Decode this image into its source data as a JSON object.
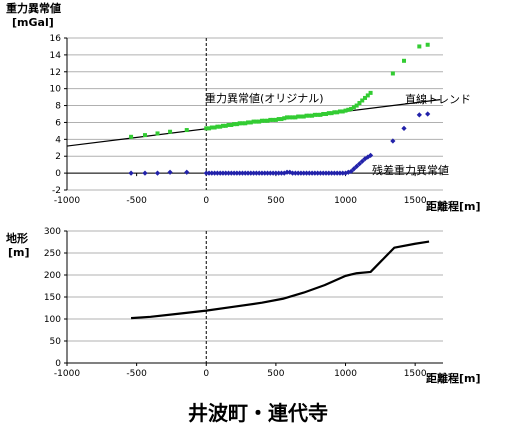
{
  "caption": "井波町・連代寺",
  "chart_data": [
    {
      "type": "scatter",
      "ylabel_line1": "重力異常値",
      "ylabel_line2": "[mGal]",
      "xlabel": "距離程[m]",
      "xlim": [
        -1000,
        1700
      ],
      "ylim": [
        -2,
        16
      ],
      "xticks": [
        -1000,
        -500,
        0,
        500,
        1000,
        1500
      ],
      "yticks": [
        -2,
        0,
        2,
        4,
        6,
        8,
        10,
        12,
        14,
        16
      ],
      "grid": "horizontal",
      "series": [
        {
          "name": "重力異常値(オリジナル)",
          "color": "#33cc33",
          "marker": "square",
          "points": [
            [
              -540,
              4.3
            ],
            [
              -440,
              4.5
            ],
            [
              -350,
              4.7
            ],
            [
              -260,
              4.9
            ],
            [
              -140,
              5.1
            ],
            [
              0,
              5.3
            ],
            [
              20,
              5.3
            ],
            [
              40,
              5.4
            ],
            [
              60,
              5.4
            ],
            [
              80,
              5.5
            ],
            [
              100,
              5.5
            ],
            [
              120,
              5.6
            ],
            [
              140,
              5.6
            ],
            [
              160,
              5.7
            ],
            [
              180,
              5.7
            ],
            [
              200,
              5.8
            ],
            [
              220,
              5.8
            ],
            [
              240,
              5.9
            ],
            [
              260,
              5.9
            ],
            [
              280,
              5.9
            ],
            [
              300,
              6.0
            ],
            [
              320,
              6.0
            ],
            [
              340,
              6.1
            ],
            [
              360,
              6.1
            ],
            [
              380,
              6.1
            ],
            [
              400,
              6.2
            ],
            [
              420,
              6.2
            ],
            [
              440,
              6.2
            ],
            [
              460,
              6.3
            ],
            [
              480,
              6.3
            ],
            [
              500,
              6.3
            ],
            [
              520,
              6.4
            ],
            [
              540,
              6.4
            ],
            [
              560,
              6.5
            ],
            [
              580,
              6.6
            ],
            [
              600,
              6.6
            ],
            [
              620,
              6.6
            ],
            [
              640,
              6.6
            ],
            [
              660,
              6.7
            ],
            [
              680,
              6.7
            ],
            [
              700,
              6.7
            ],
            [
              720,
              6.8
            ],
            [
              740,
              6.8
            ],
            [
              760,
              6.8
            ],
            [
              780,
              6.9
            ],
            [
              800,
              6.9
            ],
            [
              820,
              6.9
            ],
            [
              840,
              7.0
            ],
            [
              860,
              7.0
            ],
            [
              880,
              7.1
            ],
            [
              900,
              7.1
            ],
            [
              920,
              7.2
            ],
            [
              940,
              7.2
            ],
            [
              960,
              7.3
            ],
            [
              980,
              7.3
            ],
            [
              1000,
              7.4
            ],
            [
              1020,
              7.5
            ],
            [
              1040,
              7.6
            ],
            [
              1060,
              7.8
            ],
            [
              1080,
              8.0
            ],
            [
              1100,
              8.3
            ],
            [
              1120,
              8.6
            ],
            [
              1140,
              8.9
            ],
            [
              1160,
              9.2
            ],
            [
              1180,
              9.5
            ],
            [
              1340,
              11.8
            ],
            [
              1420,
              13.3
            ],
            [
              1530,
              15.0
            ],
            [
              1590,
              15.2
            ]
          ]
        },
        {
          "name": "残差重力異常値",
          "color": "#2222aa",
          "marker": "diamond",
          "points": [
            [
              -540,
              0.0
            ],
            [
              -440,
              0.0
            ],
            [
              -350,
              0.0
            ],
            [
              -260,
              0.1
            ],
            [
              -140,
              0.1
            ],
            [
              0,
              0.0
            ],
            [
              20,
              0.0
            ],
            [
              40,
              0.0
            ],
            [
              60,
              0.0
            ],
            [
              80,
              0.0
            ],
            [
              100,
              0.0
            ],
            [
              120,
              0.0
            ],
            [
              140,
              0.0
            ],
            [
              160,
              0.0
            ],
            [
              180,
              0.0
            ],
            [
              200,
              0.0
            ],
            [
              220,
              0.0
            ],
            [
              240,
              0.0
            ],
            [
              260,
              0.0
            ],
            [
              280,
              0.0
            ],
            [
              300,
              0.0
            ],
            [
              320,
              0.0
            ],
            [
              340,
              0.0
            ],
            [
              360,
              0.0
            ],
            [
              380,
              0.0
            ],
            [
              400,
              0.0
            ],
            [
              420,
              0.0
            ],
            [
              440,
              0.0
            ],
            [
              460,
              0.0
            ],
            [
              480,
              0.0
            ],
            [
              500,
              0.0
            ],
            [
              520,
              0.0
            ],
            [
              540,
              0.0
            ],
            [
              560,
              0.0
            ],
            [
              580,
              0.1
            ],
            [
              600,
              0.1
            ],
            [
              620,
              0.0
            ],
            [
              640,
              0.0
            ],
            [
              660,
              0.0
            ],
            [
              680,
              0.0
            ],
            [
              700,
              0.0
            ],
            [
              720,
              0.0
            ],
            [
              740,
              0.0
            ],
            [
              760,
              0.0
            ],
            [
              780,
              0.0
            ],
            [
              800,
              0.0
            ],
            [
              820,
              0.0
            ],
            [
              840,
              0.0
            ],
            [
              860,
              0.0
            ],
            [
              880,
              0.0
            ],
            [
              900,
              0.0
            ],
            [
              920,
              0.0
            ],
            [
              940,
              0.0
            ],
            [
              960,
              0.0
            ],
            [
              980,
              0.0
            ],
            [
              1000,
              0.0
            ],
            [
              1020,
              0.1
            ],
            [
              1040,
              0.2
            ],
            [
              1060,
              0.5
            ],
            [
              1080,
              0.8
            ],
            [
              1100,
              1.1
            ],
            [
              1120,
              1.4
            ],
            [
              1140,
              1.7
            ],
            [
              1160,
              1.9
            ],
            [
              1180,
              2.1
            ],
            [
              1340,
              3.8
            ],
            [
              1420,
              5.3
            ],
            [
              1530,
              6.9
            ],
            [
              1590,
              7.0
            ]
          ]
        },
        {
          "name": "直線トレンド",
          "color": "#000000",
          "marker": "line",
          "points": [
            [
              -1000,
              3.2
            ],
            [
              1680,
              8.7
            ]
          ]
        }
      ]
    },
    {
      "type": "line",
      "ylabel_line1": "地形",
      "ylabel_line2": "[m]",
      "xlabel": "距離程[m]",
      "xlim": [
        -1000,
        1700
      ],
      "ylim": [
        0,
        300
      ],
      "xticks": [
        -1000,
        -500,
        0,
        500,
        1000,
        1500
      ],
      "yticks": [
        0,
        50,
        100,
        150,
        200,
        250,
        300
      ],
      "grid": "horizontal",
      "series": [
        {
          "name": "地形",
          "color": "#000000",
          "points": [
            [
              -540,
              102
            ],
            [
              -400,
              105
            ],
            [
              -200,
              112
            ],
            [
              0,
              119
            ],
            [
              200,
              128
            ],
            [
              400,
              137
            ],
            [
              550,
              146
            ],
            [
              700,
              160
            ],
            [
              850,
              177
            ],
            [
              1000,
              198
            ],
            [
              1080,
              204
            ],
            [
              1180,
              207
            ],
            [
              1350,
              262
            ],
            [
              1500,
              271
            ],
            [
              1600,
              276
            ]
          ]
        }
      ]
    }
  ]
}
